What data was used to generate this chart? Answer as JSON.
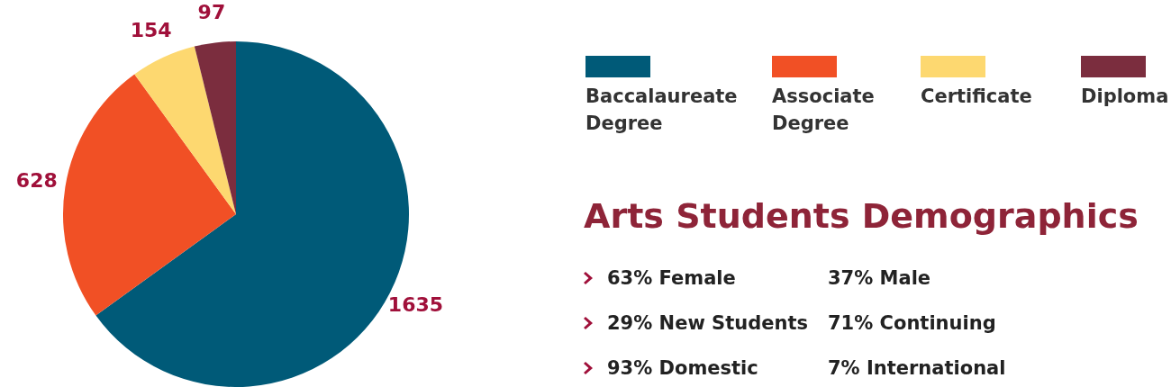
{
  "chart_data": [
    {
      "type": "pie",
      "categories": [
        "Baccalaureate Degree",
        "Associate Degree",
        "Certificate",
        "Diploma"
      ],
      "values": [
        1635,
        628,
        154,
        97
      ],
      "colors": [
        "#005a78",
        "#f15025",
        "#fdd870",
        "#7b2d3e"
      ],
      "data_labels": true,
      "legend": "right"
    },
    {
      "type": "other",
      "title": "Arts Students Demographics",
      "annotations": [
        "63% Female",
        "37% Male",
        "29% New Students",
        "71% Continuing",
        "93% Domestic",
        "7% International"
      ]
    }
  ]
}
